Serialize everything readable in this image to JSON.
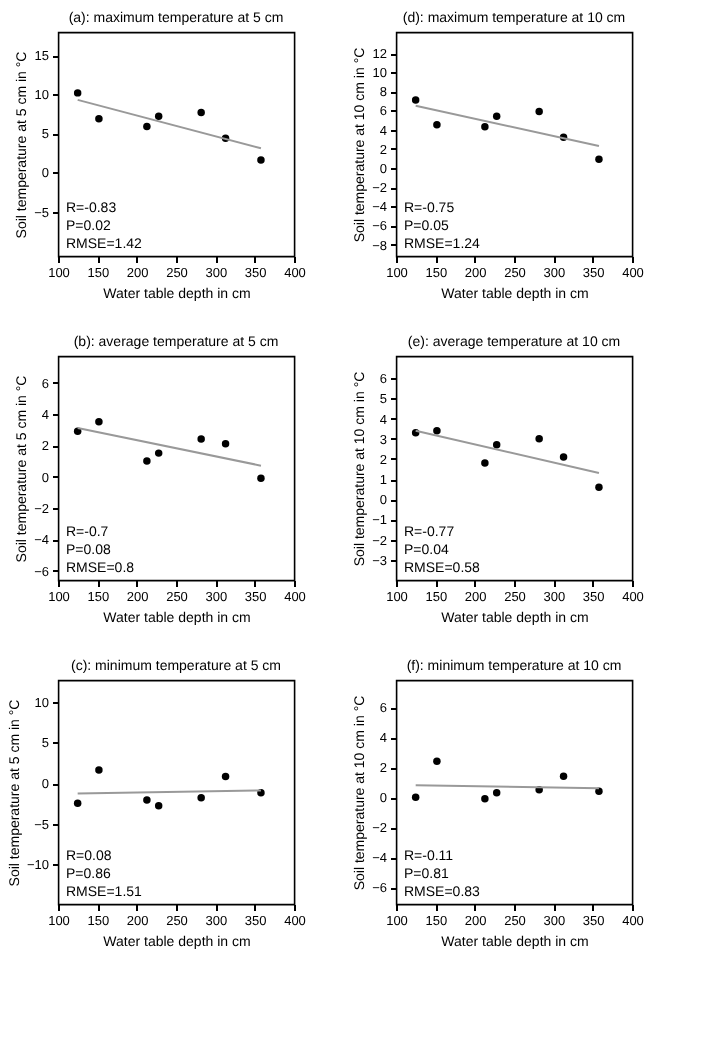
{
  "chart_data": [
    {
      "type": "scatter",
      "title": "(a): maximum temperature at 5 cm",
      "xlabel": "Water table depth in cm",
      "ylabel": "Soil temperature at 5 cm in °C",
      "xlim": [
        100,
        400
      ],
      "xticks": [
        100,
        150,
        200,
        250,
        300,
        350,
        400
      ],
      "ylim": [
        -10.7,
        18
      ],
      "yticks": [
        -5,
        0,
        5,
        10,
        15
      ],
      "grid": false,
      "annotations": [
        "R=-0.83",
        "P=0.02",
        "RMSE=1.42"
      ],
      "series": [
        {
          "type": "scatter",
          "marker": "circle",
          "color": "#000000",
          "x": [
            125,
            152,
            213,
            228,
            282,
            313,
            358
          ],
          "values": [
            10.2,
            6.9,
            5.9,
            7.2,
            7.7,
            4.4,
            1.6
          ]
        },
        {
          "type": "line",
          "color": "#999999",
          "x": [
            125,
            358
          ],
          "values": [
            9.3,
            3.1
          ]
        }
      ]
    },
    {
      "type": "scatter",
      "title": "(d): maximum temperature at 10 cm",
      "xlabel": "Water table depth in cm",
      "ylabel": "Soil temperature at 10 cm in °C",
      "xlim": [
        100,
        400
      ],
      "xticks": [
        100,
        150,
        200,
        250,
        300,
        350,
        400
      ],
      "ylim": [
        -9.2,
        14.2
      ],
      "yticks": [
        -8,
        -6,
        -4,
        -2,
        0,
        2,
        4,
        6,
        8,
        10,
        12
      ],
      "grid": false,
      "annotations": [
        "R=-0.75",
        "P=0.05",
        "RMSE=1.24"
      ],
      "series": [
        {
          "type": "scatter",
          "marker": "circle",
          "color": "#000000",
          "x": [
            125,
            152,
            213,
            228,
            282,
            313,
            358
          ],
          "values": [
            7.1,
            4.5,
            4.3,
            5.4,
            5.9,
            3.2,
            0.9
          ]
        },
        {
          "type": "line",
          "color": "#999999",
          "x": [
            125,
            358
          ],
          "values": [
            6.5,
            2.3
          ]
        }
      ]
    },
    {
      "type": "scatter",
      "title": "(b): average temperature at 5 cm",
      "xlabel": "Water table depth in cm",
      "ylabel": "Soil temperature at 5 cm in °C",
      "xlim": [
        100,
        400
      ],
      "xticks": [
        100,
        150,
        200,
        250,
        300,
        350,
        400
      ],
      "ylim": [
        -6.6,
        7.7
      ],
      "yticks": [
        -6,
        -4,
        -2,
        0,
        2,
        4,
        6
      ],
      "grid": false,
      "annotations": [
        "R=-0.7",
        "P=0.08",
        "RMSE=0.8"
      ],
      "series": [
        {
          "type": "scatter",
          "marker": "circle",
          "color": "#000000",
          "x": [
            125,
            152,
            213,
            228,
            282,
            313,
            358
          ],
          "values": [
            2.9,
            3.5,
            1.0,
            1.5,
            2.4,
            2.1,
            -0.1
          ]
        },
        {
          "type": "line",
          "color": "#999999",
          "x": [
            125,
            358
          ],
          "values": [
            3.1,
            0.7
          ]
        }
      ]
    },
    {
      "type": "scatter",
      "title": "(e): average temperature at 10 cm",
      "xlabel": "Water table depth in cm",
      "ylabel": "Soil temperature at 10 cm in °C",
      "xlim": [
        100,
        400
      ],
      "xticks": [
        100,
        150,
        200,
        250,
        300,
        350,
        400
      ],
      "ylim": [
        -4.0,
        7.1
      ],
      "yticks": [
        -3,
        -2,
        -1,
        0,
        1,
        2,
        3,
        4,
        5,
        6
      ],
      "grid": false,
      "annotations": [
        "R=-0.77",
        "P=0.04",
        "RMSE=0.58"
      ],
      "series": [
        {
          "type": "scatter",
          "marker": "circle",
          "color": "#000000",
          "x": [
            125,
            152,
            213,
            228,
            282,
            313,
            358
          ],
          "values": [
            3.3,
            3.4,
            1.8,
            2.7,
            3.0,
            2.1,
            0.6
          ]
        },
        {
          "type": "line",
          "color": "#999999",
          "x": [
            125,
            358
          ],
          "values": [
            3.4,
            1.3
          ]
        }
      ]
    },
    {
      "type": "scatter",
      "title": "(c): minimum temperature at 5 cm",
      "xlabel": "Water table depth in cm",
      "ylabel": "Soil temperature at 5 cm in °C",
      "xlim": [
        100,
        400
      ],
      "xticks": [
        100,
        150,
        200,
        250,
        300,
        350,
        400
      ],
      "ylim": [
        -14.9,
        12.7
      ],
      "yticks": [
        -10,
        -5,
        0,
        5,
        10
      ],
      "grid": false,
      "annotations": [
        "R=0.08",
        "P=0.86",
        "RMSE=1.51"
      ],
      "series": [
        {
          "type": "scatter",
          "marker": "circle",
          "color": "#000000",
          "x": [
            125,
            152,
            213,
            228,
            282,
            313,
            358
          ],
          "values": [
            -2.5,
            1.6,
            -2.1,
            -2.8,
            -1.8,
            0.8,
            -1.2
          ]
        },
        {
          "type": "line",
          "color": "#999999",
          "x": [
            125,
            358
          ],
          "values": [
            -1.3,
            -0.9
          ]
        }
      ]
    },
    {
      "type": "scatter",
      "title": "(f): minimum temperature at 10 cm",
      "xlabel": "Water table depth in cm",
      "ylabel": "Soil temperature at 10 cm in °C",
      "xlim": [
        100,
        400
      ],
      "xticks": [
        100,
        150,
        200,
        250,
        300,
        350,
        400
      ],
      "ylim": [
        -7.1,
        7.8
      ],
      "yticks": [
        -6,
        -4,
        -2,
        0,
        2,
        4,
        6
      ],
      "grid": false,
      "annotations": [
        "R=-0.11",
        "P=0.81",
        "RMSE=0.83"
      ],
      "series": [
        {
          "type": "scatter",
          "marker": "circle",
          "color": "#000000",
          "x": [
            125,
            152,
            213,
            228,
            282,
            313,
            358
          ],
          "values": [
            0.0,
            2.4,
            -0.1,
            0.3,
            0.5,
            1.4,
            0.4
          ]
        },
        {
          "type": "line",
          "color": "#999999",
          "x": [
            125,
            358
          ],
          "values": [
            0.8,
            0.6
          ]
        }
      ]
    }
  ]
}
